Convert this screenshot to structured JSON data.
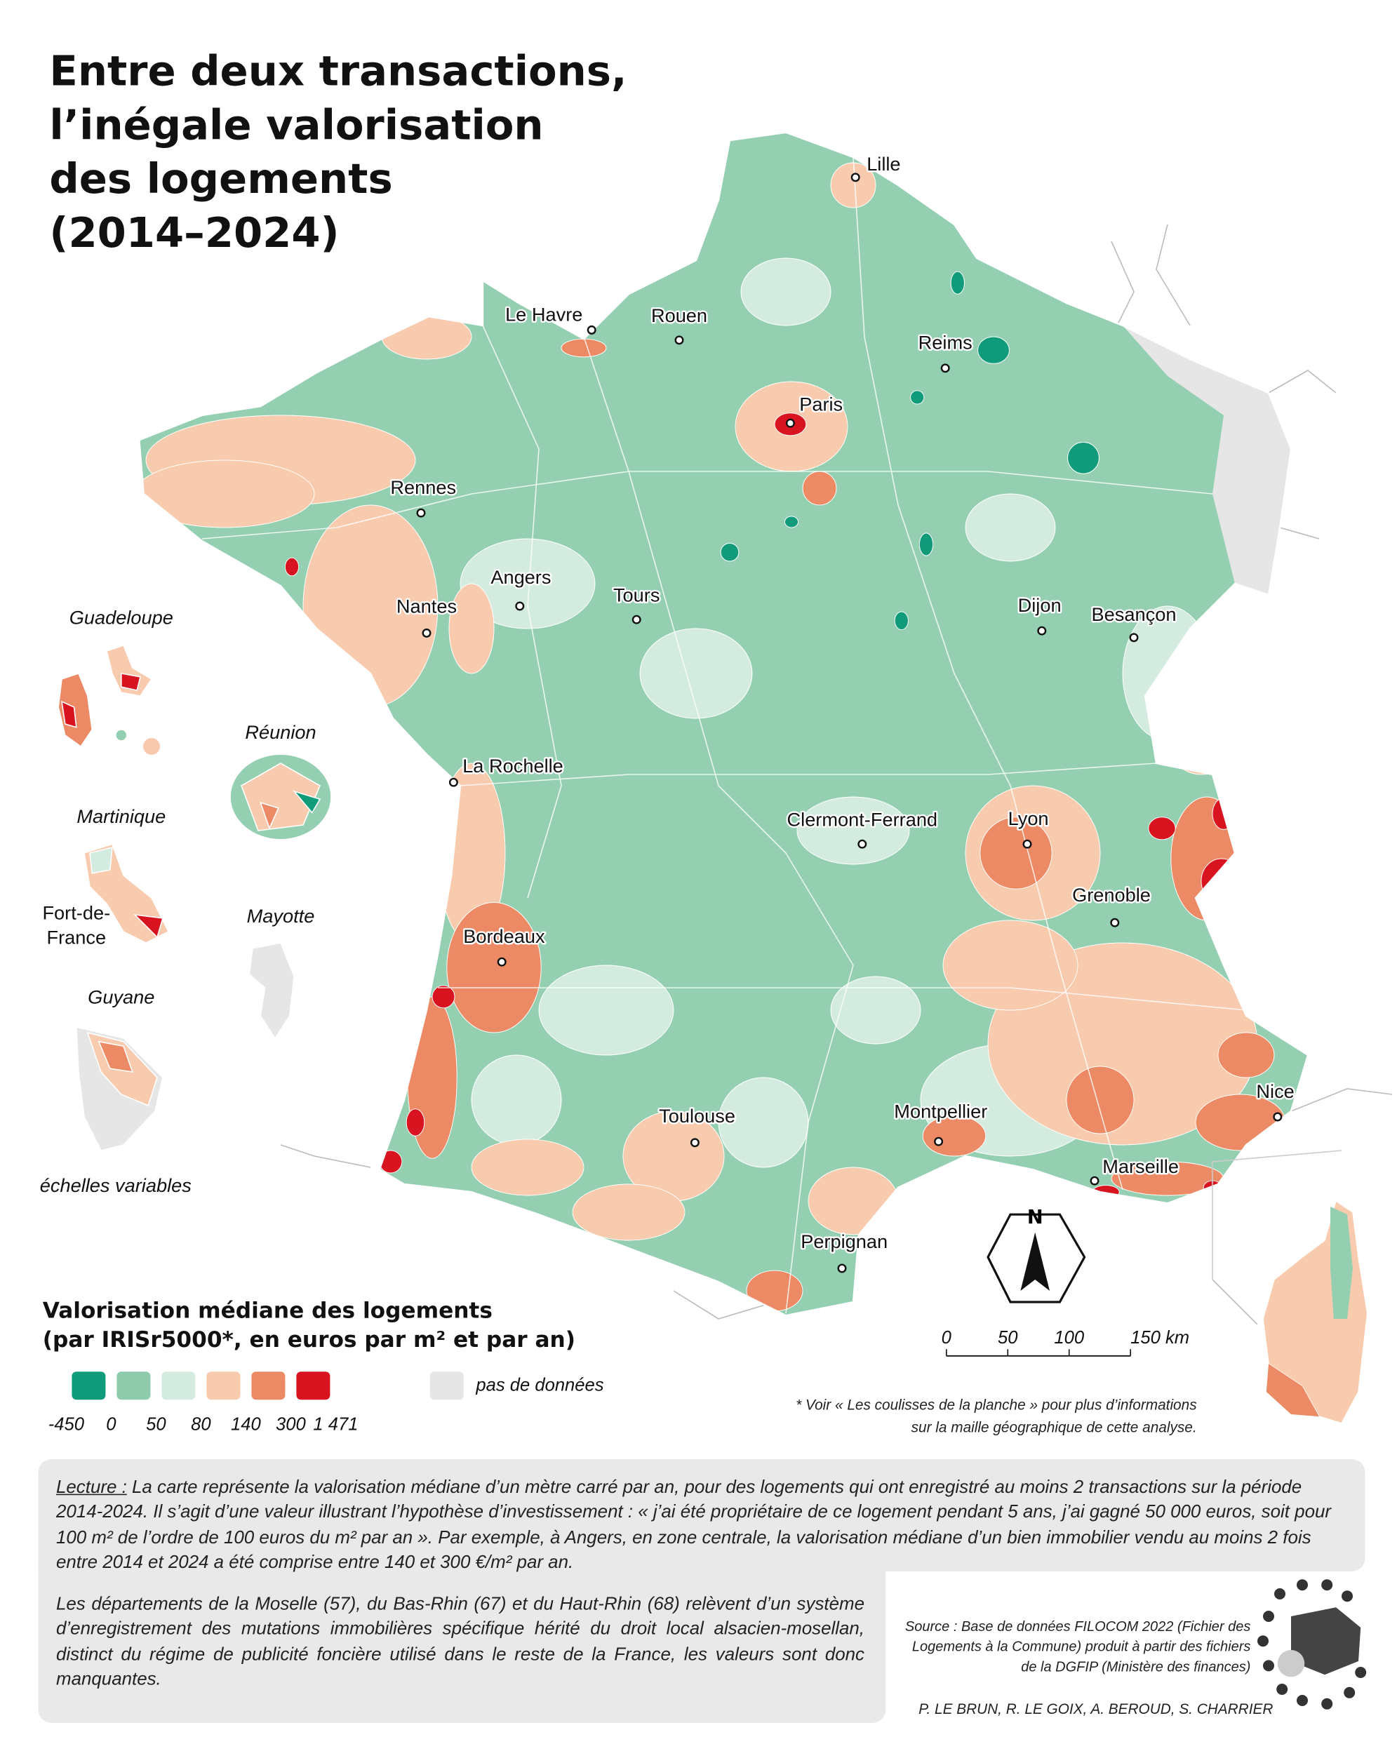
{
  "title_lines": [
    "Entre deux transactions,",
    "l’inégale valorisation",
    "des logements",
    "(2014–2024)"
  ],
  "cities": [
    "Lille",
    "Le Havre",
    "Rouen",
    "Reims",
    "Paris",
    "Rennes",
    "Angers",
    "Nantes",
    "Tours",
    "Dijon",
    "Besançon",
    "La Rochelle",
    "Clermont-Ferrand",
    "Lyon",
    "Grenoble",
    "Bordeaux",
    "Nice",
    "Montpellier",
    "Toulouse",
    "Marseille",
    "Perpignan"
  ],
  "insets": {
    "labels": [
      "Guadeloupe",
      "Réunion",
      "Martinique",
      "Mayotte",
      "Guyane"
    ],
    "fort_de_france": [
      "Fort-de-",
      "France"
    ],
    "scale_note": "échelles variables"
  },
  "legend": {
    "title_lines": [
      "Valorisation médiane des logements",
      "(par IRISr5000*, en euros par m² et par an)"
    ],
    "colors": [
      "#109b7a",
      "#8ecbad",
      "#d4ece0",
      "#f8cbae",
      "#ec8a66",
      "#d7141f"
    ],
    "breaks": [
      -450,
      0,
      50,
      80,
      140,
      300,
      {
        "value": 1471,
        "label": "1 471"
      }
    ],
    "no_data_label": "pas de données",
    "no_data_color": "#e6e6e6"
  },
  "north": "N",
  "scale_bar": {
    "ticks": [
      0,
      50,
      100,
      {
        "value": 150,
        "label": "150 km"
      }
    ]
  },
  "footnote_lines": [
    "* Voir « Les coulisses de la planche » pour plus d’informations",
    "sur la maille géographique de cette analyse."
  ],
  "reading": {
    "label": "Lecture :",
    "text": "La carte représente la valorisation médiane d’un mètre carré par an, pour des logements qui ont enregistré au moins 2 transactions sur la période 2014-2024. Il s’agit d’une valeur illustrant l’hypothèse d’investissement : « j’ai été propriétaire de ce logement pendant 5 ans, j’ai gagné 50 000 euros, soit pour 100 m² de l’ordre de 100 euros du m² par an ».  Par exemple, à Angers, en zone centrale, la valorisation médiane d’un bien immobilier vendu au moins 2 fois entre 2014 et 2024 a été comprise entre 140 et 300 €/m² par an."
  },
  "alsace_note": "Les départements de la Moselle (57), du Bas-Rhin (67) et du Haut-Rhin (68) relèvent d’un système d’enregistrement des mutations immobilières spécifique hérité du droit local alsacien-mosellan, distinct du régime de publicité foncière utilisé dans le reste de la France, les valeurs sont donc manquantes.",
  "source": "Source : Base de données FILOCOM 2022 (Fichier des Logements à la Commune) produit à partir des fichiers de la DGFIP (Ministère des finances)",
  "authors": "P. LE BRUN, R. LE GOIX, A. BEROUD, S. CHARRIER"
}
